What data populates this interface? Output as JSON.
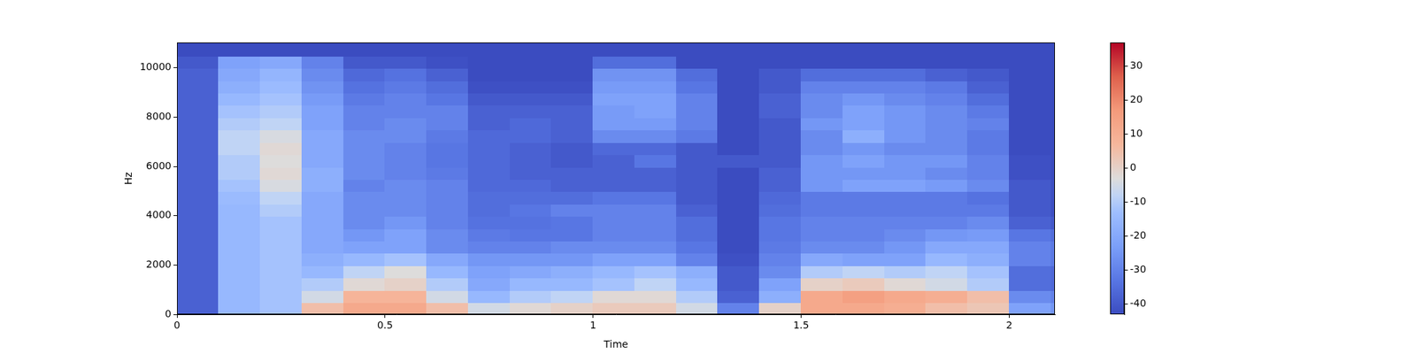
{
  "chart_data": {
    "type": "heatmap",
    "x_label": "Time",
    "y_label": "Hz",
    "xlim": [
      0,
      2.11
    ],
    "ylim": [
      0,
      11025
    ],
    "xticks": [
      0,
      0.5,
      1,
      1.5,
      2
    ],
    "yticks": [
      0,
      2000,
      4000,
      6000,
      8000,
      10000
    ],
    "grid": false,
    "x_bins": [
      0,
      0.1,
      0.2,
      0.3,
      0.4,
      0.5,
      0.6,
      0.7,
      0.8,
      0.9,
      1.0,
      1.1,
      1.2,
      1.3,
      1.4,
      1.5,
      1.6,
      1.7,
      1.8,
      1.9,
      2.0,
      2.1,
      2.11
    ],
    "y_bins": [
      0,
      500,
      1000,
      1500,
      2000,
      2500,
      3000,
      3500,
      4000,
      4500,
      5000,
      5500,
      6000,
      6500,
      7000,
      7500,
      8000,
      8500,
      9000,
      9500,
      10000,
      10500,
      11025
    ],
    "cells": [
      [
        -38,
        -38,
        -38,
        -38,
        -38,
        -38,
        -38,
        -38,
        -38,
        -38,
        -38,
        -38,
        -38,
        -38,
        -38,
        -38,
        -38,
        -38,
        -38,
        -38,
        -40,
        -43
      ],
      [
        -15,
        -15,
        -15,
        -15,
        -15,
        -15,
        -15,
        -15,
        -15,
        -14,
        -12,
        -10,
        -10,
        -8,
        -8,
        -10,
        -12,
        -15,
        -18,
        -20,
        -22,
        -43
      ],
      [
        -12,
        -12,
        -12,
        -12,
        -12,
        -12,
        -12,
        -12,
        -10,
        -8,
        -4,
        -2,
        -3,
        -2,
        -4,
        -8,
        -10,
        -12,
        -14,
        -16,
        -20,
        -43
      ],
      [
        5,
        -5,
        -10,
        -15,
        -18,
        -20,
        -20,
        -20,
        -20,
        -20,
        -18,
        -18,
        -20,
        -20,
        -20,
        -22,
        -22,
        -24,
        -26,
        -28,
        -30,
        -43
      ],
      [
        12,
        8,
        -2,
        -8,
        -15,
        -22,
        -25,
        -28,
        -28,
        -28,
        -30,
        -28,
        -28,
        -28,
        -28,
        -30,
        -30,
        -32,
        -34,
        -36,
        -40,
        -43
      ],
      [
        12,
        8,
        0,
        -3,
        -12,
        -22,
        -22,
        -25,
        -28,
        -28,
        -28,
        -30,
        -30,
        -30,
        -28,
        -28,
        -30,
        -30,
        -32,
        -34,
        -40,
        -43
      ],
      [
        5,
        -5,
        -10,
        -15,
        -20,
        -28,
        -28,
        -30,
        -30,
        -30,
        -30,
        -32,
        -33,
        -33,
        -32,
        -30,
        -30,
        -33,
        -35,
        -38,
        -42,
        -43
      ],
      [
        -5,
        -15,
        -20,
        -22,
        -25,
        -30,
        -32,
        -34,
        -35,
        -35,
        -36,
        -36,
        -36,
        -36,
        -36,
        -38,
        -38,
        -40,
        -42,
        -43,
        -43,
        -43
      ],
      [
        -2,
        -10,
        -15,
        -20,
        -25,
        -30,
        -33,
        -34,
        -33,
        -35,
        -36,
        -38,
        -38,
        -38,
        -36,
        -36,
        -38,
        -40,
        -42,
        -43,
        -43,
        -43
      ],
      [
        0,
        -8,
        -15,
        -18,
        -25,
        -28,
        -33,
        -33,
        -30,
        -35,
        -38,
        -38,
        -40,
        -40,
        -38,
        -38,
        -38,
        -40,
        -42,
        -43,
        -43,
        -43
      ],
      [
        2,
        -2,
        -12,
        -15,
        -22,
        -28,
        -30,
        -30,
        -30,
        -33,
        -38,
        -38,
        -38,
        -36,
        -28,
        -24,
        -24,
        -22,
        -24,
        -26,
        -35,
        -43
      ],
      [
        2,
        -2,
        -8,
        -12,
        -22,
        -28,
        -30,
        -30,
        -30,
        -33,
        -38,
        -38,
        -33,
        -36,
        -28,
        -24,
        -22,
        -22,
        -24,
        -26,
        -35,
        -43
      ],
      [
        -5,
        -10,
        -15,
        -18,
        -30,
        -33,
        -35,
        -35,
        -38,
        -40,
        -40,
        -40,
        -40,
        -40,
        -32,
        -30,
        -30,
        -30,
        -33,
        -35,
        -43,
        -43
      ],
      [
        -30,
        -38,
        -40,
        -40,
        -42,
        -43,
        -43,
        -43,
        -43,
        -43,
        -43,
        -43,
        -40,
        -43,
        -43,
        -43,
        -43,
        -43,
        -43,
        -43,
        -43,
        -43
      ],
      [
        0,
        -18,
        -22,
        -28,
        -30,
        -32,
        -33,
        -33,
        -35,
        -36,
        -38,
        -38,
        -40,
        -40,
        -40,
        -40,
        -38,
        -38,
        -40,
        -40,
        -43,
        -43
      ],
      [
        12,
        12,
        0,
        -10,
        -20,
        -28,
        -30,
        -30,
        -32,
        -32,
        -25,
        -25,
        -25,
        -28,
        -28,
        -25,
        -28,
        -28,
        -30,
        -35,
        -43,
        -43
      ],
      [
        12,
        15,
        2,
        -8,
        -22,
        -28,
        -30,
        -30,
        -32,
        -32,
        -22,
        -25,
        -22,
        -25,
        -18,
        -22,
        -22,
        -25,
        -30,
        -35,
        -43,
        -43
      ],
      [
        10,
        12,
        -2,
        -10,
        -22,
        -25,
        -28,
        -30,
        -32,
        -32,
        -22,
        -25,
        -25,
        -28,
        -25,
        -25,
        -25,
        -28,
        -30,
        -35,
        -43,
        -43
      ],
      [
        5,
        10,
        -5,
        -8,
        -15,
        -20,
        -25,
        -30,
        -32,
        -32,
        -24,
        -28,
        -25,
        -28,
        -28,
        -28,
        -28,
        -30,
        -32,
        -38,
        -43,
        -43
      ],
      [
        3,
        5,
        -10,
        -12,
        -18,
        -20,
        -24,
        -28,
        -32,
        -34,
        -28,
        -30,
        -30,
        -32,
        -32,
        -30,
        -32,
        -35,
        -38,
        -40,
        -43,
        -43
      ],
      [
        -22,
        -28,
        -35,
        -35,
        -30,
        -30,
        -33,
        -38,
        -40,
        -40,
        -40,
        -42,
        -42,
        -43,
        -43,
        -43,
        -43,
        -43,
        -43,
        -43,
        -43,
        -43
      ],
      [
        -25,
        -30,
        -36,
        -36,
        -32,
        -32,
        -35,
        -40,
        -42,
        -42,
        -42,
        -43,
        -43,
        -43,
        -43,
        -43,
        -43,
        -43,
        -43,
        -43,
        -43,
        -43
      ]
    ],
    "colorbar": {
      "range": [
        -43,
        37
      ],
      "ticks": [
        -40,
        -30,
        -20,
        -10,
        0,
        10,
        20,
        30
      ]
    }
  }
}
